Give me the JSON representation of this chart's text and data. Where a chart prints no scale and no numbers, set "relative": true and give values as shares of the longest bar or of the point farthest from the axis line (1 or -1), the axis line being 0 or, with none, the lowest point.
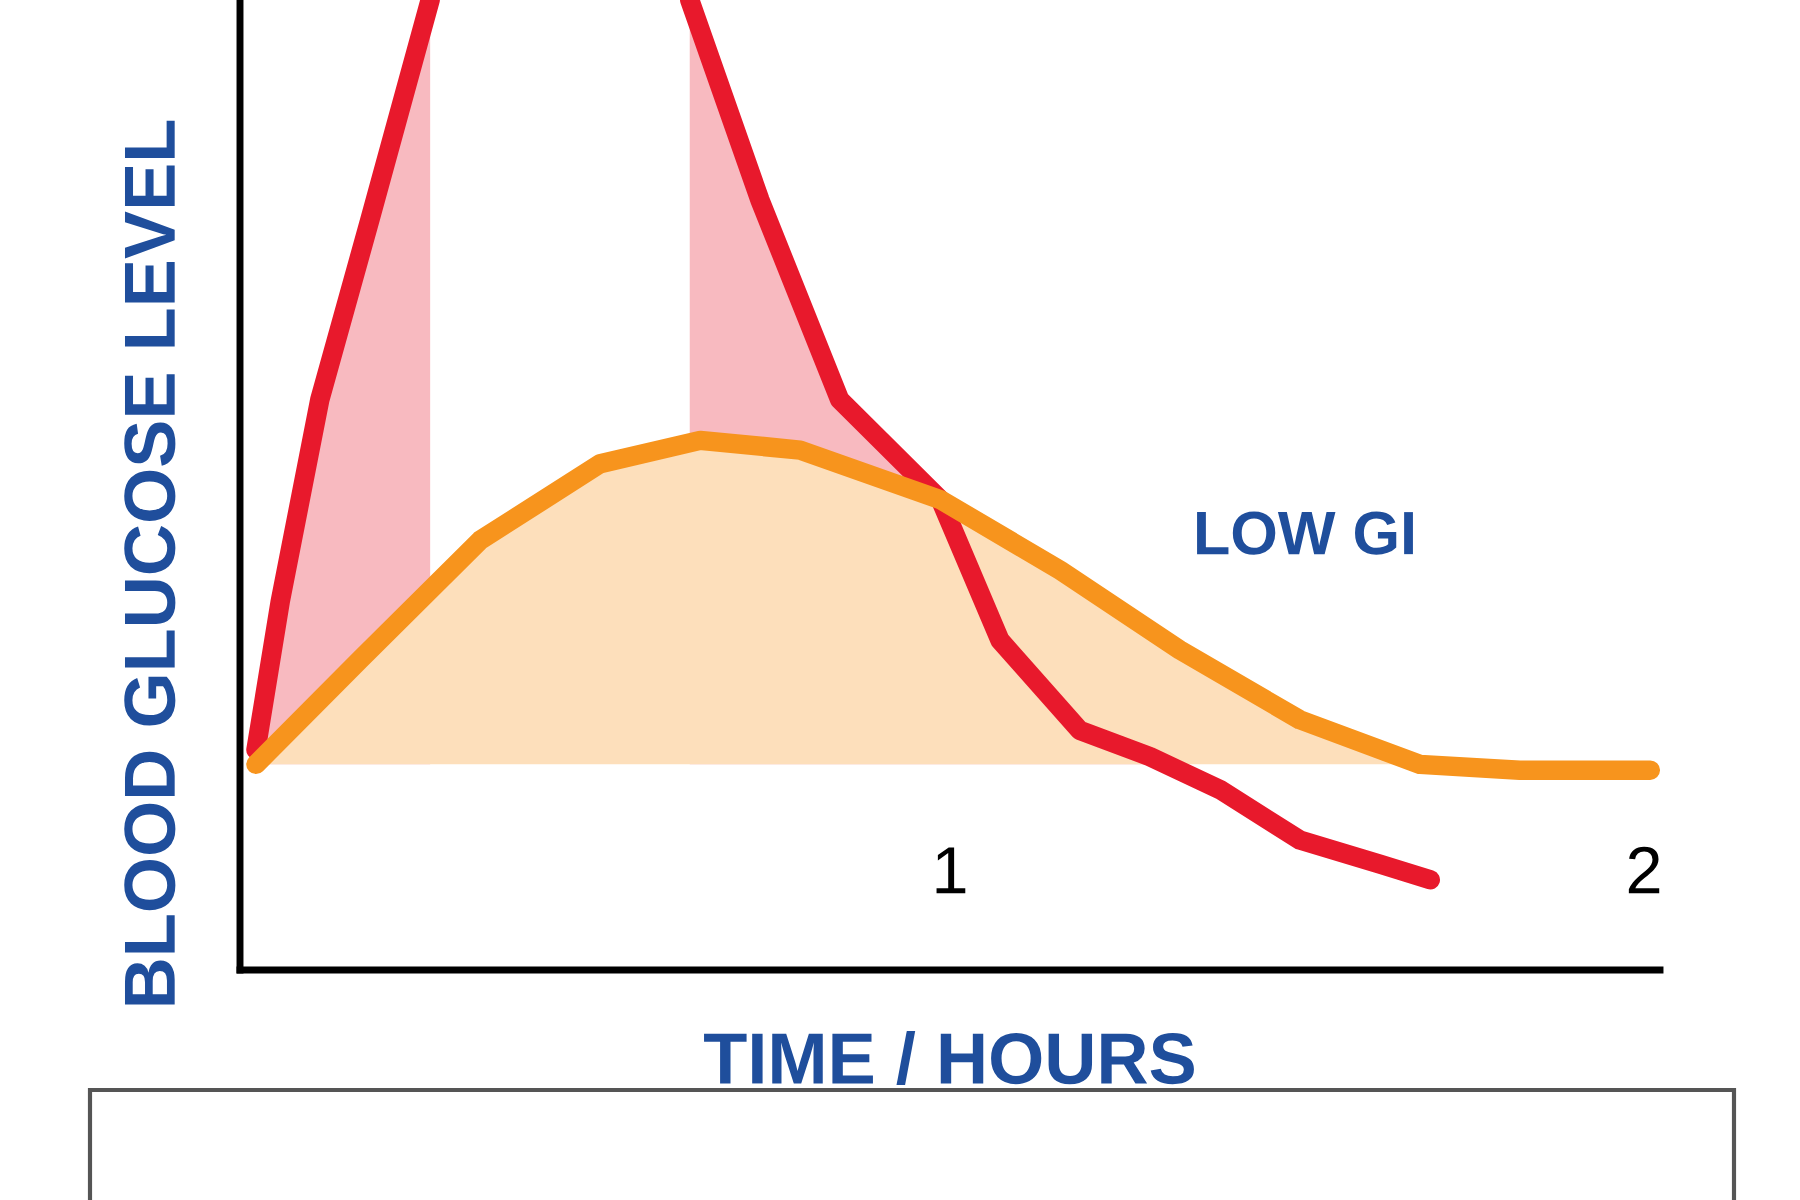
{
  "chart_data": {
    "type": "line",
    "relative": true,
    "xlabel": "TIME / HOURS",
    "ylabel": "BLOOD GLUCOSE LEVEL",
    "xlim": [
      -0.023,
      2.023
    ],
    "xticks": [
      1,
      2
    ],
    "grid": false,
    "tick_labels": "x",
    "series": [
      {
        "color": "#e8192c",
        "x": [
          0,
          0.035,
          0.092,
          0.164,
          0.251,
          0.44,
          0.625,
          0.726,
          0.841,
          0.986,
          1.072,
          1.187,
          1.288,
          1.389,
          1.504,
          1.62,
          1.692
        ],
        "values": [
          0.227,
          0.38,
          0.588,
          0.773,
          1.0,
          null,
          1.0,
          0.794,
          0.588,
          0.485,
          0.34,
          0.247,
          0.22,
          0.186,
          0.134,
          0.109,
          0.093
        ]
      },
      {
        "color": "#f7941d",
        "x": [
          0,
          0.15,
          0.323,
          0.496,
          0.64,
          0.784,
          0.986,
          1.159,
          1.331,
          1.504,
          1.677,
          1.821,
          2.009
        ],
        "values": [
          0.212,
          0.32,
          0.443,
          0.522,
          0.546,
          0.536,
          0.485,
          0.412,
          0.33,
          0.258,
          0.212,
          0.206,
          0.206
        ]
      }
    ],
    "annotations": [
      "LOW GI"
    ]
  }
}
